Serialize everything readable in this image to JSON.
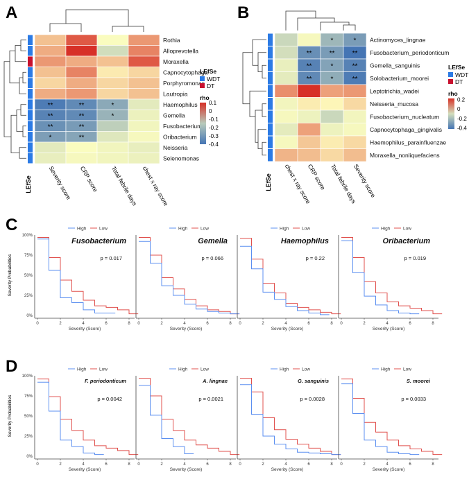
{
  "panel_labels": [
    "A",
    "B",
    "C",
    "D"
  ],
  "colors": {
    "wdt": "#2c7be5",
    "dt": "#c8102e",
    "high": "#5b8ff0",
    "low": "#e0504d",
    "axis": "#444444",
    "grid": "#d8d8d8"
  },
  "chart_data": [
    {
      "id": "A",
      "type": "heatmap",
      "rows": [
        "Rothia",
        "Alloprevotella",
        "Moraxella",
        "Capnocytophaga",
        "Porphyromonas",
        "Lautropia",
        "Haemophilus",
        "Gemella",
        "Fusobacterium",
        "Oribacterium",
        "Neisseria",
        "Selenomonas"
      ],
      "columns": [
        "Severity score",
        "CRP score",
        "Total febrile days",
        "chest x ray score"
      ],
      "values": [
        [
          0.03,
          0.08,
          -0.01,
          0.05
        ],
        [
          0.04,
          0.1,
          -0.1,
          0.06
        ],
        [
          0.05,
          0.04,
          0.03,
          0.08
        ],
        [
          0.03,
          0.06,
          0.01,
          0.02
        ],
        [
          0.02,
          0.04,
          0.02,
          0.03
        ],
        [
          0.04,
          0.05,
          0.02,
          0.03
        ],
        [
          -0.38,
          -0.34,
          -0.25,
          -0.06
        ],
        [
          -0.36,
          -0.34,
          -0.22,
          -0.04
        ],
        [
          -0.32,
          -0.29,
          -0.14,
          -0.03
        ],
        [
          -0.28,
          -0.26,
          -0.07,
          -0.02
        ],
        [
          -0.06,
          -0.01,
          -0.03,
          -0.05
        ],
        [
          -0.05,
          -0.02,
          -0.03,
          -0.04
        ]
      ],
      "stars": [
        [
          "",
          "",
          "",
          ""
        ],
        [
          "",
          "",
          "",
          ""
        ],
        [
          "",
          "",
          "",
          ""
        ],
        [
          "",
          "",
          "",
          ""
        ],
        [
          "",
          "",
          "",
          ""
        ],
        [
          "",
          "",
          "",
          ""
        ],
        [
          "**",
          "**",
          "*",
          ""
        ],
        [
          "**",
          "**",
          "*",
          ""
        ],
        [
          "**",
          "**",
          "",
          ""
        ],
        [
          "*",
          "**",
          "",
          ""
        ],
        [
          "",
          "",
          "",
          ""
        ],
        [
          "",
          "",
          "",
          ""
        ]
      ],
      "lefse": [
        "WDT",
        "WDT",
        "DT",
        "WDT",
        "WDT",
        "WDT",
        "WDT",
        "WDT",
        "WDT",
        "WDT",
        "WDT",
        "WDT"
      ],
      "lefse_label": "LEfSe",
      "legend": {
        "title": "LEfSe",
        "entries": [
          "WDT",
          "DT"
        ],
        "rho_title": "rho",
        "rho_ticks": [
          "0.1",
          "0",
          "-0.1",
          "-0.2",
          "-0.3",
          "-0.4"
        ],
        "rho_range": [
          -0.4,
          0.1
        ]
      }
    },
    {
      "id": "B",
      "type": "heatmap",
      "rows": [
        "Actinomyces_lingnae",
        "Fusobacterium_periodonticum",
        "Gemella_sanguinis",
        "Solobacterium_moorei",
        "Leptotrichia_wadei",
        "Neisseria_mucosa",
        "Fusobacterium_nucleatum",
        "Capnocytophaga_gingivalis",
        "Haemophilus_parainfluenzae",
        "Moraxella_nonliquefaciens"
      ],
      "columns": [
        "chest x ray score",
        "CRP score",
        "Total febrile days",
        "Severity score"
      ],
      "values": [
        [
          -0.12,
          -0.02,
          -0.22,
          -0.3
        ],
        [
          -0.1,
          -0.34,
          -0.3,
          -0.42
        ],
        [
          -0.05,
          -0.38,
          -0.28,
          -0.38
        ],
        [
          -0.06,
          -0.36,
          -0.25,
          -0.4
        ],
        [
          0.12,
          0.24,
          0.1,
          0.11
        ],
        [
          -0.03,
          0.02,
          0.01,
          0.04
        ],
        [
          -0.02,
          -0.04,
          -0.12,
          -0.03
        ],
        [
          -0.06,
          0.1,
          -0.04,
          -0.02
        ],
        [
          -0.02,
          0.06,
          0.02,
          0.04
        ],
        [
          0.08,
          0.07,
          0.04,
          0.07
        ]
      ],
      "stars": [
        [
          "",
          "",
          "*",
          "*"
        ],
        [
          "",
          "**",
          "**",
          "**"
        ],
        [
          "",
          "**",
          "*",
          "**"
        ],
        [
          "",
          "**",
          "*",
          "**"
        ],
        [
          "",
          "",
          "",
          ""
        ],
        [
          "",
          "",
          "",
          ""
        ],
        [
          "",
          "",
          "",
          ""
        ],
        [
          "",
          "",
          "",
          ""
        ],
        [
          "",
          "",
          "",
          ""
        ],
        [
          "",
          "",
          "",
          ""
        ]
      ],
      "lefse": [
        "WDT",
        "WDT",
        "WDT",
        "WDT",
        "WDT",
        "WDT",
        "WDT",
        "WDT",
        "WDT",
        "WDT"
      ],
      "lefse_label": "LEfSe",
      "legend": {
        "title": "LEfSe",
        "entries": [
          "WDT",
          "DT"
        ],
        "rho_title": "rho",
        "rho_ticks": [
          "0.2",
          "0",
          "-0.2",
          "-0.4"
        ],
        "rho_range": [
          -0.42,
          0.22
        ]
      }
    },
    {
      "id": "C",
      "type": "line",
      "ylabel": "Severity Probabilities",
      "xlabel": "Severity (Score)",
      "x_ticks": [
        0,
        2,
        4,
        6,
        8
      ],
      "y_ticks": [
        "0%",
        "25%",
        "50%",
        "75%",
        "100%"
      ],
      "legend": [
        "High",
        "Low"
      ],
      "panels": [
        {
          "title": "Fusobacterium",
          "italic": true,
          "p": "p = 0.017",
          "high": {
            "x": [
              0,
              1,
              2,
              3,
              4,
              5,
              6
            ],
            "y": [
              0.95,
              0.56,
              0.22,
              0.16,
              0.07,
              0.03,
              0.03
            ]
          },
          "low": {
            "x": [
              0,
              1,
              2,
              3,
              4,
              5,
              6,
              7,
              8
            ],
            "y": [
              0.97,
              0.72,
              0.44,
              0.3,
              0.19,
              0.12,
              0.1,
              0.07,
              0.02
            ]
          }
        },
        {
          "title": "Gemella",
          "italic": true,
          "p": "p = 0.066",
          "high": {
            "x": [
              0,
              1,
              2,
              3,
              4,
              5,
              6,
              7,
              8
            ],
            "y": [
              0.92,
              0.65,
              0.37,
              0.25,
              0.14,
              0.08,
              0.05,
              0.03,
              0.02
            ]
          },
          "low": {
            "x": [
              0,
              1,
              2,
              3,
              4,
              5,
              6,
              7,
              8
            ],
            "y": [
              0.97,
              0.75,
              0.47,
              0.33,
              0.2,
              0.12,
              0.07,
              0.05,
              0.02
            ]
          }
        },
        {
          "title": "Haemophilus",
          "italic": true,
          "p": "p = 0.22",
          "high": {
            "x": [
              0,
              1,
              2,
              3,
              4,
              5,
              6,
              7
            ],
            "y": [
              0.86,
              0.58,
              0.29,
              0.2,
              0.11,
              0.06,
              0.03,
              0.01
            ]
          },
          "low": {
            "x": [
              0,
              1,
              2,
              3,
              4,
              5,
              6,
              7,
              8
            ],
            "y": [
              0.96,
              0.7,
              0.4,
              0.28,
              0.15,
              0.1,
              0.07,
              0.04,
              0.02
            ]
          }
        },
        {
          "title": "Oribacterium",
          "italic": true,
          "p": "p = 0.019",
          "high": {
            "x": [
              0,
              1,
              2,
              3,
              4,
              5,
              6
            ],
            "y": [
              0.93,
              0.53,
              0.24,
              0.13,
              0.06,
              0.03,
              0.02
            ]
          },
          "low": {
            "x": [
              0,
              1,
              2,
              3,
              4,
              5,
              6,
              7,
              8
            ],
            "y": [
              0.97,
              0.72,
              0.42,
              0.28,
              0.17,
              0.12,
              0.09,
              0.06,
              0.02
            ]
          }
        }
      ]
    },
    {
      "id": "D",
      "type": "line",
      "ylabel": "Severity Probabilities",
      "xlabel": "Severity (Score)",
      "x_ticks": [
        0,
        2,
        4,
        6,
        8
      ],
      "y_ticks": [
        "0%",
        "25%",
        "50%",
        "75%",
        "100%"
      ],
      "legend": [
        "High",
        "Low"
      ],
      "panels": [
        {
          "title": "F. periodonticum",
          "italic": true,
          "p": "p = 0.0042",
          "high": {
            "x": [
              0,
              1,
              2,
              3,
              4,
              5
            ],
            "y": [
              0.92,
              0.56,
              0.2,
              0.12,
              0.04,
              0.02
            ]
          },
          "low": {
            "x": [
              0,
              1,
              2,
              3,
              4,
              5,
              6,
              7,
              8
            ],
            "y": [
              0.96,
              0.74,
              0.46,
              0.32,
              0.2,
              0.13,
              0.1,
              0.07,
              0.02
            ]
          }
        },
        {
          "title": "A. lingnae",
          "italic": true,
          "p": "p = 0.0021",
          "high": {
            "x": [
              0,
              1,
              2,
              3,
              4
            ],
            "y": [
              0.88,
              0.51,
              0.22,
              0.12,
              0.03
            ]
          },
          "low": {
            "x": [
              0,
              1,
              2,
              3,
              4,
              5,
              6,
              7,
              8
            ],
            "y": [
              0.97,
              0.75,
              0.46,
              0.32,
              0.2,
              0.14,
              0.1,
              0.06,
              0.02
            ]
          }
        },
        {
          "title": "G. sanguinis",
          "italic": true,
          "p": "p = 0.0028",
          "high": {
            "x": [
              0,
              1,
              2,
              3,
              4,
              5,
              6,
              7,
              8
            ],
            "y": [
              0.89,
              0.52,
              0.25,
              0.15,
              0.09,
              0.05,
              0.04,
              0.03,
              0.02
            ]
          },
          "low": {
            "x": [
              0,
              1,
              2,
              3,
              4,
              5,
              6,
              7,
              8
            ],
            "y": [
              0.97,
              0.8,
              0.48,
              0.33,
              0.21,
              0.15,
              0.1,
              0.06,
              0.02
            ]
          }
        },
        {
          "title": "S. moorei",
          "italic": true,
          "p": "p = 0.0033",
          "high": {
            "x": [
              0,
              1,
              2,
              3,
              4,
              5,
              6
            ],
            "y": [
              0.9,
              0.53,
              0.2,
              0.12,
              0.05,
              0.03,
              0.02
            ]
          },
          "low": {
            "x": [
              0,
              1,
              2,
              3,
              4,
              5,
              6,
              7,
              8
            ],
            "y": [
              0.96,
              0.72,
              0.42,
              0.3,
              0.2,
              0.13,
              0.09,
              0.06,
              0.02
            ]
          }
        }
      ]
    }
  ]
}
